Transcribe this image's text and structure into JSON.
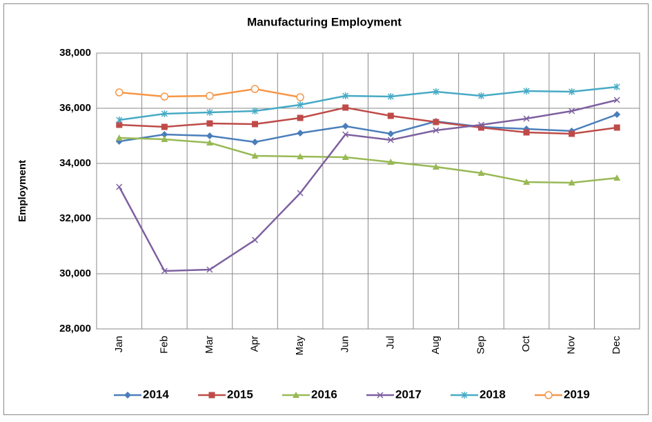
{
  "chart_data": {
    "type": "line",
    "title": "Manufacturing Employment",
    "y_label": "Employment",
    "categories": [
      "Jan",
      "Feb",
      "Mar",
      "Apr",
      "May",
      "Jun",
      "Jul",
      "Aug",
      "Sep",
      "Oct",
      "Nov",
      "Dec"
    ],
    "ylim": [
      28000,
      38000
    ],
    "yticks": [
      {
        "value": 28000,
        "label": "28,000"
      },
      {
        "value": 30000,
        "label": "30,000"
      },
      {
        "value": 32000,
        "label": "32,000"
      },
      {
        "value": 34000,
        "label": "34,000"
      },
      {
        "value": 36000,
        "label": "36,000"
      },
      {
        "value": 38000,
        "label": "38,000"
      }
    ],
    "grid": true,
    "legend": "bottom",
    "series": [
      {
        "name": "2014",
        "color": "#4a7ebb",
        "marker": "diamond",
        "values": [
          34800,
          35050,
          35000,
          34775,
          35100,
          35350,
          35075,
          35525,
          35325,
          35250,
          35175,
          35775
        ]
      },
      {
        "name": "2015",
        "color": "#be4b48",
        "marker": "square",
        "values": [
          35400,
          35325,
          35450,
          35425,
          35650,
          36025,
          35725,
          35500,
          35300,
          35125,
          35075,
          35300
        ]
      },
      {
        "name": "2016",
        "color": "#98b954",
        "marker": "triangle",
        "values": [
          34925,
          34875,
          34750,
          34275,
          34250,
          34225,
          34050,
          33875,
          33650,
          33325,
          33300,
          33475
        ]
      },
      {
        "name": "2017",
        "color": "#7d60a0",
        "marker": "x",
        "values": [
          33150,
          30100,
          30150,
          31225,
          32925,
          35050,
          34850,
          35200,
          35400,
          35625,
          35900,
          36300
        ]
      },
      {
        "name": "2018",
        "color": "#46aac5",
        "marker": "star",
        "values": [
          35575,
          35800,
          35850,
          35900,
          36125,
          36450,
          36425,
          36600,
          36450,
          36625,
          36600,
          36775
        ]
      },
      {
        "name": "2019",
        "color": "#f79646",
        "marker": "circle",
        "values": [
          36575,
          36425,
          36450,
          36700,
          36400,
          null,
          null,
          null,
          null,
          null,
          null,
          null
        ]
      }
    ]
  }
}
